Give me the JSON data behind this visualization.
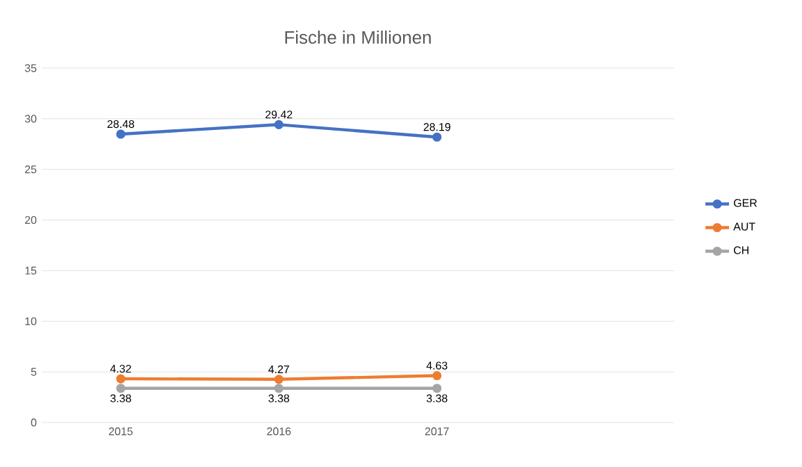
{
  "chart_data": {
    "type": "line",
    "title": "Fische in Millionen",
    "categories": [
      "2015",
      "2016",
      "2017"
    ],
    "series": [
      {
        "name": "GER",
        "color": "#4472c4",
        "values": [
          28.48,
          29.42,
          28.19
        ]
      },
      {
        "name": "AUT",
        "color": "#ed7d31",
        "values": [
          4.32,
          4.27,
          4.63
        ]
      },
      {
        "name": "CH",
        "color": "#a5a5a5",
        "values": [
          3.38,
          3.38,
          3.38
        ]
      }
    ],
    "ylim": [
      0,
      35
    ],
    "yticks": [
      0,
      5,
      10,
      15,
      20,
      25,
      30,
      35
    ],
    "grid": "y",
    "legend": "right",
    "marker": "circle",
    "line_style": "solid",
    "data_labels": true
  }
}
